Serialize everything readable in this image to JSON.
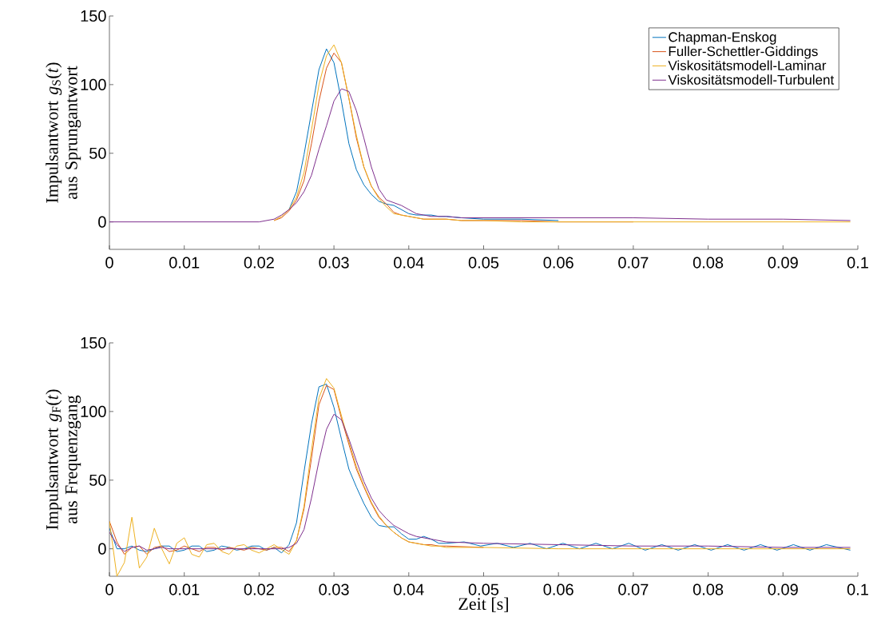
{
  "chart_data": [
    {
      "type": "line",
      "legend": "top right",
      "ylabel": "Impulsantwort *g*$_{S}$(*t*) aus Sprungantwort",
      "xlim": [
        0,
        0.1
      ],
      "ylim": [
        -20,
        150
      ],
      "xticks": [
        0,
        0.01,
        0.02,
        0.03,
        0.04,
        0.05,
        0.06,
        0.07,
        0.08,
        0.09,
        0.1
      ],
      "yticks": [
        0,
        50,
        100,
        150
      ],
      "series": [
        {
          "name": "Chapman-Enskog",
          "color": "#0072bd",
          "x": [
            0.024,
            0.025,
            0.026,
            0.027,
            0.028,
            0.029,
            0.03,
            0.031,
            0.032,
            0.033,
            0.034,
            0.035,
            0.036,
            0.037,
            0.038,
            0.039,
            0.04,
            0.041,
            0.042,
            0.043,
            0.044,
            0.045,
            0.047,
            0.05,
            0.055,
            0.06
          ],
          "values": [
            9,
            22,
            49,
            80,
            111,
            126,
            116,
            88,
            57,
            38,
            27,
            20,
            15,
            13,
            12,
            9,
            6,
            5,
            5,
            5,
            4,
            4,
            3,
            2,
            2,
            1
          ]
        },
        {
          "name": "Fuller-Schettler-Giddings",
          "color": "#d95319",
          "x": [
            0.022,
            0.023,
            0.024,
            0.025,
            0.026,
            0.027,
            0.028,
            0.029,
            0.03,
            0.031,
            0.032,
            0.033,
            0.034,
            0.035,
            0.036,
            0.037,
            0.038,
            0.039,
            0.04,
            0.041,
            0.042,
            0.043,
            0.044,
            0.045,
            0.047,
            0.05,
            0.055,
            0.06,
            0.07
          ],
          "values": [
            1,
            3,
            8,
            16,
            30,
            57,
            88,
            112,
            123,
            116,
            90,
            61,
            40,
            26,
            18,
            13,
            7,
            5,
            4,
            3,
            2,
            2,
            2,
            2,
            1,
            1,
            1,
            0,
            0
          ]
        },
        {
          "name": "Viskositätsmodell-Laminar",
          "color": "#edb120",
          "x": [
            0.022,
            0.023,
            0.024,
            0.025,
            0.026,
            0.027,
            0.028,
            0.029,
            0.03,
            0.031,
            0.032,
            0.033,
            0.034,
            0.035,
            0.036,
            0.037,
            0.038,
            0.039,
            0.04,
            0.041,
            0.042,
            0.043,
            0.044,
            0.045,
            0.047,
            0.05,
            0.055,
            0.06,
            0.07,
            0.08,
            0.09,
            0.099
          ],
          "values": [
            1,
            4,
            9,
            18,
            36,
            67,
            100,
            121,
            129,
            116,
            90,
            63,
            40,
            26,
            17,
            11,
            6,
            5,
            4,
            3,
            2,
            2,
            2,
            2,
            1,
            1,
            0,
            0,
            0,
            0,
            0,
            0
          ]
        },
        {
          "name": "Viskositätsmodell-Turbulent",
          "color": "#7e2f8e",
          "x": [
            0,
            0.01,
            0.02,
            0.021,
            0.022,
            0.023,
            0.024,
            0.025,
            0.026,
            0.027,
            0.028,
            0.029,
            0.03,
            0.031,
            0.032,
            0.033,
            0.034,
            0.035,
            0.036,
            0.037,
            0.038,
            0.039,
            0.04,
            0.041,
            0.042,
            0.043,
            0.044,
            0.045,
            0.047,
            0.05,
            0.055,
            0.06,
            0.07,
            0.08,
            0.09,
            0.099
          ],
          "values": [
            0,
            0,
            0,
            1,
            2,
            5,
            9,
            14,
            22,
            34,
            53,
            70,
            88,
            97,
            95,
            81,
            61,
            40,
            24,
            16,
            14,
            12,
            9,
            6,
            5,
            4,
            4,
            4,
            3,
            3,
            3,
            3,
            3,
            2,
            2,
            1
          ]
        }
      ]
    },
    {
      "type": "line",
      "xlabel": "Zeit [s]",
      "ylabel": "Impulsantwort *g*$_{F}$(*t*) aus Frequenzgang",
      "xlim": [
        0,
        0.1
      ],
      "ylim": [
        -20,
        150
      ],
      "xticks": [
        0,
        0.01,
        0.02,
        0.03,
        0.04,
        0.05,
        0.06,
        0.07,
        0.08,
        0.09,
        0.1
      ],
      "yticks": [
        0,
        50,
        100,
        150
      ],
      "series": [
        {
          "color": "#0072bd",
          "x": [
            0,
            0.001,
            0.002,
            0.003,
            0.004,
            0.005,
            0.006,
            0.007,
            0.008,
            0.009,
            0.01,
            0.011,
            0.012,
            0.013,
            0.014,
            0.015,
            0.016,
            0.017,
            0.018,
            0.019,
            0.02,
            0.021,
            0.022,
            0.023,
            0.024,
            0.025,
            0.026,
            0.027,
            0.028,
            0.029,
            0.03,
            0.031,
            0.032,
            0.033,
            0.034,
            0.035,
            0.036,
            0.037,
            0.038,
            0.039,
            0.04,
            0.041,
            0.042,
            0.043,
            0.044,
            0.045,
            0.0474,
            0.0496,
            0.0518,
            0.054,
            0.0562,
            0.0584,
            0.0606,
            0.0628,
            0.065,
            0.0672,
            0.0694,
            0.0716,
            0.0738,
            0.076,
            0.0782,
            0.0804,
            0.0826,
            0.0848,
            0.087,
            0.0892,
            0.0914,
            0.0936,
            0.0958,
            0.099
          ],
          "values": [
            15,
            0,
            0,
            2,
            -1,
            -2,
            0,
            2,
            2,
            -2,
            -1,
            2,
            2,
            -2,
            -1,
            2,
            1,
            -1,
            0,
            2,
            2,
            -1,
            1,
            -3,
            3,
            19,
            56,
            91,
            118,
            120,
            103,
            80,
            58,
            45,
            33,
            23,
            17,
            16,
            16,
            11,
            7,
            7,
            9,
            7,
            4,
            4,
            5,
            2,
            4,
            1,
            4,
            0,
            4,
            0,
            4,
            0,
            4,
            -1,
            3,
            -1,
            3,
            -1,
            3,
            -1,
            3,
            -1,
            3,
            -1,
            3,
            -1
          ]
        },
        {
          "color": "#d95319",
          "x": [
            0,
            0.001,
            0.002,
            0.003,
            0.004,
            0.005,
            0.006,
            0.007,
            0.008,
            0.009,
            0.01,
            0.011,
            0.012,
            0.013,
            0.014,
            0.015,
            0.016,
            0.017,
            0.018,
            0.019,
            0.02,
            0.021,
            0.022,
            0.023,
            0.024,
            0.025,
            0.026,
            0.027,
            0.028,
            0.029,
            0.03,
            0.031,
            0.032,
            0.033,
            0.034,
            0.035,
            0.036,
            0.037,
            0.038,
            0.039,
            0.04,
            0.041,
            0.042,
            0.043,
            0.044,
            0.045,
            0.05
          ],
          "values": [
            20,
            5,
            -4,
            1,
            2,
            -4,
            1,
            2,
            -2,
            -1,
            2,
            0,
            -2,
            1,
            1,
            -1,
            1,
            0,
            -1,
            1,
            0,
            -1,
            1,
            1,
            -2,
            6,
            29,
            66,
            105,
            119,
            116,
            95,
            76,
            58,
            45,
            33,
            23,
            17,
            12,
            8,
            5,
            4,
            3,
            3,
            2,
            2,
            1
          ]
        },
        {
          "color": "#edb120",
          "x": [
            0,
            0.001,
            0.002,
            0.003,
            0.004,
            0.005,
            0.006,
            0.007,
            0.008,
            0.009,
            0.01,
            0.011,
            0.012,
            0.013,
            0.014,
            0.015,
            0.016,
            0.017,
            0.018,
            0.019,
            0.02,
            0.021,
            0.022,
            0.024,
            0.025,
            0.026,
            0.027,
            0.028,
            0.029,
            0.03,
            0.031,
            0.032,
            0.033,
            0.034,
            0.035,
            0.036,
            0.037,
            0.038,
            0.039,
            0.04,
            0.041,
            0.042,
            0.043,
            0.044,
            0.045,
            0.05,
            0.06,
            0.07,
            0.08,
            0.09,
            0.099
          ],
          "values": [
            20,
            -20,
            -10,
            23,
            -14,
            -6,
            15,
            0,
            -11,
            4,
            8,
            -4,
            -6,
            3,
            4,
            -2,
            -4,
            2,
            3,
            -1,
            -3,
            0,
            3,
            -4,
            6,
            31,
            72,
            110,
            124,
            117,
            97,
            78,
            60,
            46,
            34,
            24,
            17,
            12,
            8,
            5,
            4,
            3,
            2,
            2,
            1,
            1,
            0,
            0,
            0,
            0,
            0
          ]
        },
        {
          "color": "#7e2f8e",
          "x": [
            0,
            0.001,
            0.002,
            0.003,
            0.004,
            0.005,
            0.006,
            0.007,
            0.008,
            0.009,
            0.01,
            0.011,
            0.012,
            0.013,
            0.014,
            0.015,
            0.016,
            0.017,
            0.018,
            0.019,
            0.02,
            0.021,
            0.022,
            0.023,
            0.024,
            0.025,
            0.026,
            0.027,
            0.028,
            0.029,
            0.03,
            0.031,
            0.032,
            0.033,
            0.034,
            0.035,
            0.036,
            0.037,
            0.038,
            0.039,
            0.04,
            0.041,
            0.042,
            0.043,
            0.044,
            0.045,
            0.05,
            0.06,
            0.07,
            0.08,
            0.09,
            0.099
          ],
          "values": [
            12,
            3,
            -2,
            1,
            2,
            -1,
            0,
            1,
            0,
            0,
            0,
            0,
            0,
            0,
            0,
            0,
            0,
            0,
            0,
            0,
            0,
            0,
            0,
            0,
            1,
            4,
            14,
            37,
            64,
            87,
            98,
            94,
            80,
            64,
            49,
            37,
            28,
            22,
            17,
            14,
            11,
            9,
            8,
            7,
            6,
            5,
            4,
            3,
            2,
            2,
            1,
            1
          ]
        }
      ]
    }
  ]
}
